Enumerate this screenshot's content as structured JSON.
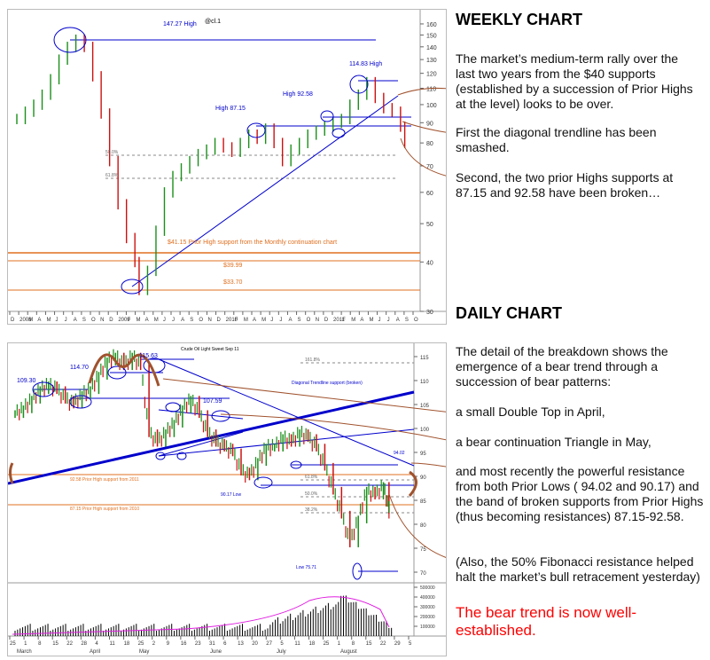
{
  "weekly": {
    "heading": "WEEKLY CHART",
    "symbol": "@cl.1",
    "labels": {
      "high147": "147.27 High",
      "high114": "114.83 High",
      "high92": "High 92.58",
      "high87": "High 87.15",
      "support41": "$41.15 Prior High support from the Monthly continuation chart",
      "p3999": "$39.99",
      "p3370": "$33.70",
      "fib50": "50.0%",
      "fib61": "61.8%"
    },
    "paragraphs": [
      "The market’s medium-term rally over the last two years from the $40 supports (established by a succession of Prior Highs at the level) looks to be over.",
      "First the diagonal trendline has been smashed.",
      "Second, the two prior Highs supports at 87.15 and 92.58 have been broken…"
    ]
  },
  "daily": {
    "heading": "DAILY CHART",
    "symbol": "Crude Oil Light Sweet Sep 11",
    "labels": {
      "p10930": "109.30",
      "p11470": "114.70",
      "p11563": "115.63",
      "p10759": "107.59",
      "diag": "Diagonal Trendline support (broken)",
      "fib161": "161.8%",
      "fib61": "61.8%",
      "fib50": "50.0%",
      "fib38": "38.2%",
      "r9258": "92.58 Prior High support from 2011",
      "l9017": "90.17 Low",
      "r8715": "87.15 Prior High support from 2010",
      "low": "Low 75.71",
      "p9402": "94.02"
    },
    "paragraphs": [
      "The detail of the breakdown shows the emergence of a bear trend through a succession of bear patterns:",
      "a small Double Top in April,",
      "a bear continuation Triangle in May,",
      "and most recently the powerful resistance from both Prior Lows ( 94.02 and 90.17) and the band of broken supports from Prior Highs (thus becoming resistances) 87.15-92.58.",
      "(Also, the 50% Fibonacci resistance helped halt the market’s bull retracement yesterday)"
    ],
    "conclusion": "The bear trend is now well-established."
  },
  "chart_data": [
    {
      "type": "bar",
      "title": "WEEKLY CHART",
      "yticks": [
        30,
        40,
        50,
        60,
        70,
        80,
        90,
        100,
        110,
        120,
        130,
        140,
        150,
        160
      ],
      "xticks": [
        "D",
        "2008",
        "M",
        "A",
        "M",
        "J",
        "J",
        "A",
        "S",
        "O",
        "N",
        "D",
        "2009",
        "F",
        "M",
        "A",
        "M",
        "J",
        "J",
        "A",
        "S",
        "O",
        "N",
        "D",
        "2010",
        "F",
        "M",
        "A",
        "M",
        "J",
        "J",
        "A",
        "S",
        "O",
        "N",
        "D",
        "2011",
        "F",
        "M",
        "A",
        "M",
        "J",
        "J",
        "A",
        "S",
        "O"
      ],
      "points": [
        [
          0,
          92
        ],
        [
          4,
          96
        ],
        [
          8,
          100
        ],
        [
          12,
          106
        ],
        [
          16,
          116
        ],
        [
          20,
          130
        ],
        [
          24,
          140
        ],
        [
          28,
          146
        ],
        [
          32,
          140
        ],
        [
          36,
          118
        ],
        [
          40,
          95
        ],
        [
          44,
          72
        ],
        [
          48,
          56
        ],
        [
          52,
          46
        ],
        [
          56,
          40
        ],
        [
          58,
          34
        ],
        [
          62,
          38
        ],
        [
          66,
          48
        ],
        [
          70,
          60
        ],
        [
          74,
          66
        ],
        [
          78,
          69
        ],
        [
          82,
          72
        ],
        [
          86,
          75
        ],
        [
          90,
          77
        ],
        [
          94,
          80
        ],
        [
          98,
          78
        ],
        [
          102,
          76
        ],
        [
          106,
          80
        ],
        [
          110,
          84
        ],
        [
          114,
          82
        ],
        [
          118,
          87
        ],
        [
          122,
          80
        ],
        [
          126,
          72
        ],
        [
          130,
          77
        ],
        [
          134,
          80
        ],
        [
          138,
          84
        ],
        [
          142,
          86
        ],
        [
          146,
          88
        ],
        [
          150,
          90
        ],
        [
          154,
          92
        ],
        [
          158,
          100
        ],
        [
          162,
          106
        ],
        [
          166,
          114
        ],
        [
          170,
          104
        ],
        [
          174,
          98
        ],
        [
          178,
          96
        ],
        [
          182,
          88
        ],
        [
          184,
          80
        ]
      ]
    },
    {
      "type": "bar",
      "title": "DAILY CHART",
      "yticks": [
        70,
        75,
        80,
        85,
        90,
        95,
        100,
        105,
        110,
        115
      ],
      "xticks": [
        "25",
        "1",
        "8",
        "15",
        "22",
        "28",
        "4",
        "11",
        "18",
        "25",
        "2",
        "9",
        "16",
        "23",
        "31",
        "6",
        "13",
        "20",
        "27",
        "5",
        "11",
        "18",
        "25",
        "1",
        "8",
        "15",
        "22",
        "29",
        "5"
      ],
      "months": [
        "March",
        "April",
        "May",
        "June",
        "July",
        "August"
      ],
      "points": [
        [
          0,
          103
        ],
        [
          6,
          104
        ],
        [
          12,
          106
        ],
        [
          18,
          108
        ],
        [
          24,
          109
        ],
        [
          30,
          108
        ],
        [
          36,
          106
        ],
        [
          42,
          105
        ],
        [
          48,
          107
        ],
        [
          54,
          108
        ],
        [
          60,
          111
        ],
        [
          66,
          114
        ],
        [
          72,
          115
        ],
        [
          78,
          113
        ],
        [
          84,
          115
        ],
        [
          90,
          113
        ],
        [
          96,
          99
        ],
        [
          102,
          97
        ],
        [
          108,
          99
        ],
        [
          114,
          101
        ],
        [
          120,
          104
        ],
        [
          126,
          106
        ],
        [
          132,
          103
        ],
        [
          138,
          99
        ],
        [
          144,
          97
        ],
        [
          150,
          96
        ],
        [
          156,
          95
        ],
        [
          162,
          91
        ],
        [
          168,
          90
        ],
        [
          174,
          93
        ],
        [
          180,
          96
        ],
        [
          186,
          96
        ],
        [
          192,
          98
        ],
        [
          198,
          97
        ],
        [
          204,
          99
        ],
        [
          210,
          98
        ],
        [
          216,
          96
        ],
        [
          222,
          92
        ],
        [
          228,
          87
        ],
        [
          234,
          82
        ],
        [
          240,
          76
        ],
        [
          246,
          81
        ],
        [
          252,
          87
        ],
        [
          258,
          86
        ],
        [
          264,
          88
        ],
        [
          268,
          83
        ]
      ],
      "volume": {
        "ylim": [
          0,
          500000
        ],
        "yticks": [
          100000,
          200000,
          300000,
          400000,
          500000
        ]
      }
    }
  ]
}
